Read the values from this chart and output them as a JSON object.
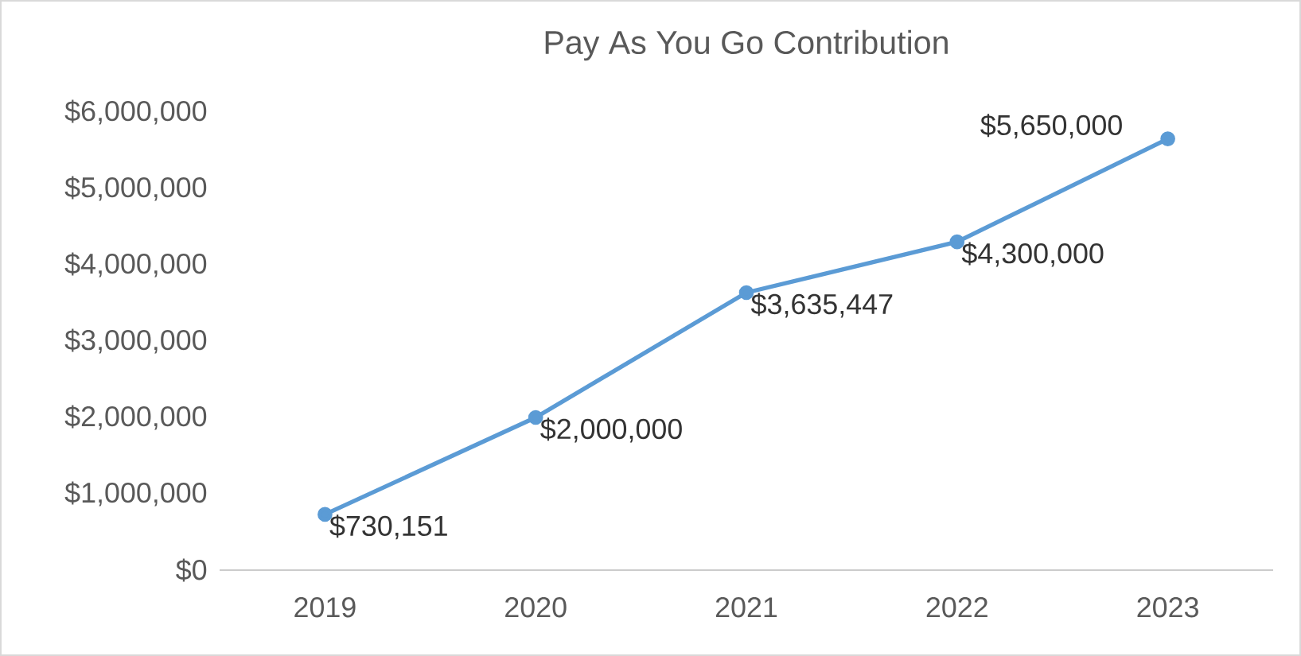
{
  "chart_data": {
    "type": "line",
    "title": "Pay As You Go Contribution",
    "categories": [
      "2019",
      "2020",
      "2021",
      "2022",
      "2023"
    ],
    "values": [
      730151,
      2000000,
      3635447,
      4300000,
      5650000
    ],
    "value_labels": [
      "$730,151",
      "$2,000,000",
      "$3,635,447",
      "$4,300,000",
      "$5,650,000"
    ],
    "color": "#5b9bd5",
    "marker": "circle",
    "ylim": [
      0,
      6000000
    ],
    "yticks": [
      {
        "value": 0,
        "label": "$0"
      },
      {
        "value": 1000000,
        "label": "$1,000,000"
      },
      {
        "value": 2000000,
        "label": "$2,000,000"
      },
      {
        "value": 3000000,
        "label": "$3,000,000"
      },
      {
        "value": 4000000,
        "label": "$4,000,000"
      },
      {
        "value": 5000000,
        "label": "$5,000,000"
      },
      {
        "value": 6000000,
        "label": "$6,000,000"
      }
    ]
  }
}
